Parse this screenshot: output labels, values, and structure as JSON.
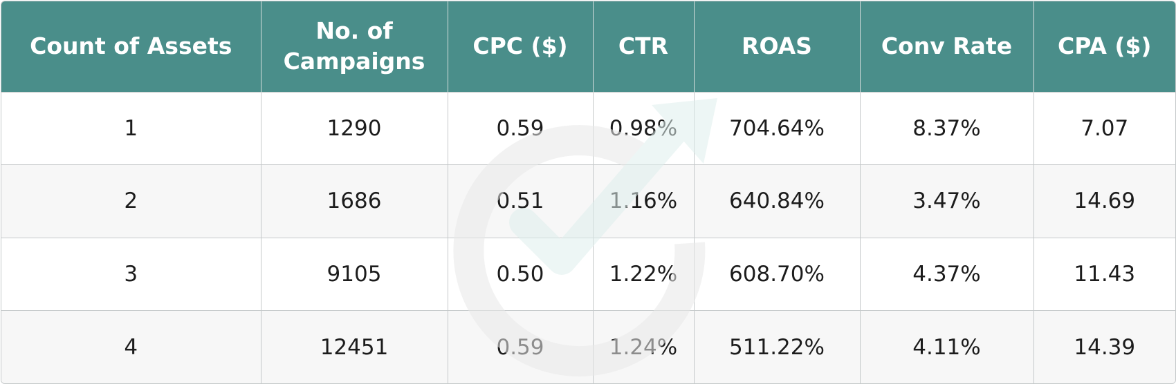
{
  "chart_data": {
    "type": "table",
    "columns": [
      "Count of Assets",
      "No. of Campaigns",
      "CPC ($)",
      "CTR",
      "ROAS",
      "Conv Rate",
      "CPA ($)"
    ],
    "rows": [
      [
        "1",
        "1290",
        "0.59",
        "0.98%",
        "704.64%",
        "8.37%",
        "7.07"
      ],
      [
        "2",
        "1686",
        "0.51",
        "1.16%",
        "640.84%",
        "3.47%",
        "14.69"
      ],
      [
        "3",
        "9105",
        "0.50",
        "1.22%",
        "608.70%",
        "4.37%",
        "11.43"
      ],
      [
        "4",
        "12451",
        "0.59",
        "1.24%",
        "511.22%",
        "4.11%",
        "14.39"
      ]
    ]
  },
  "colors": {
    "header_background": "#4a8e8a",
    "header_text": "#ffffff",
    "row_alt_background": "#f6f6f6",
    "grid_line": "#c4c8c9"
  },
  "watermark": {
    "icon": "circular-checkmark-arrow-icon"
  }
}
